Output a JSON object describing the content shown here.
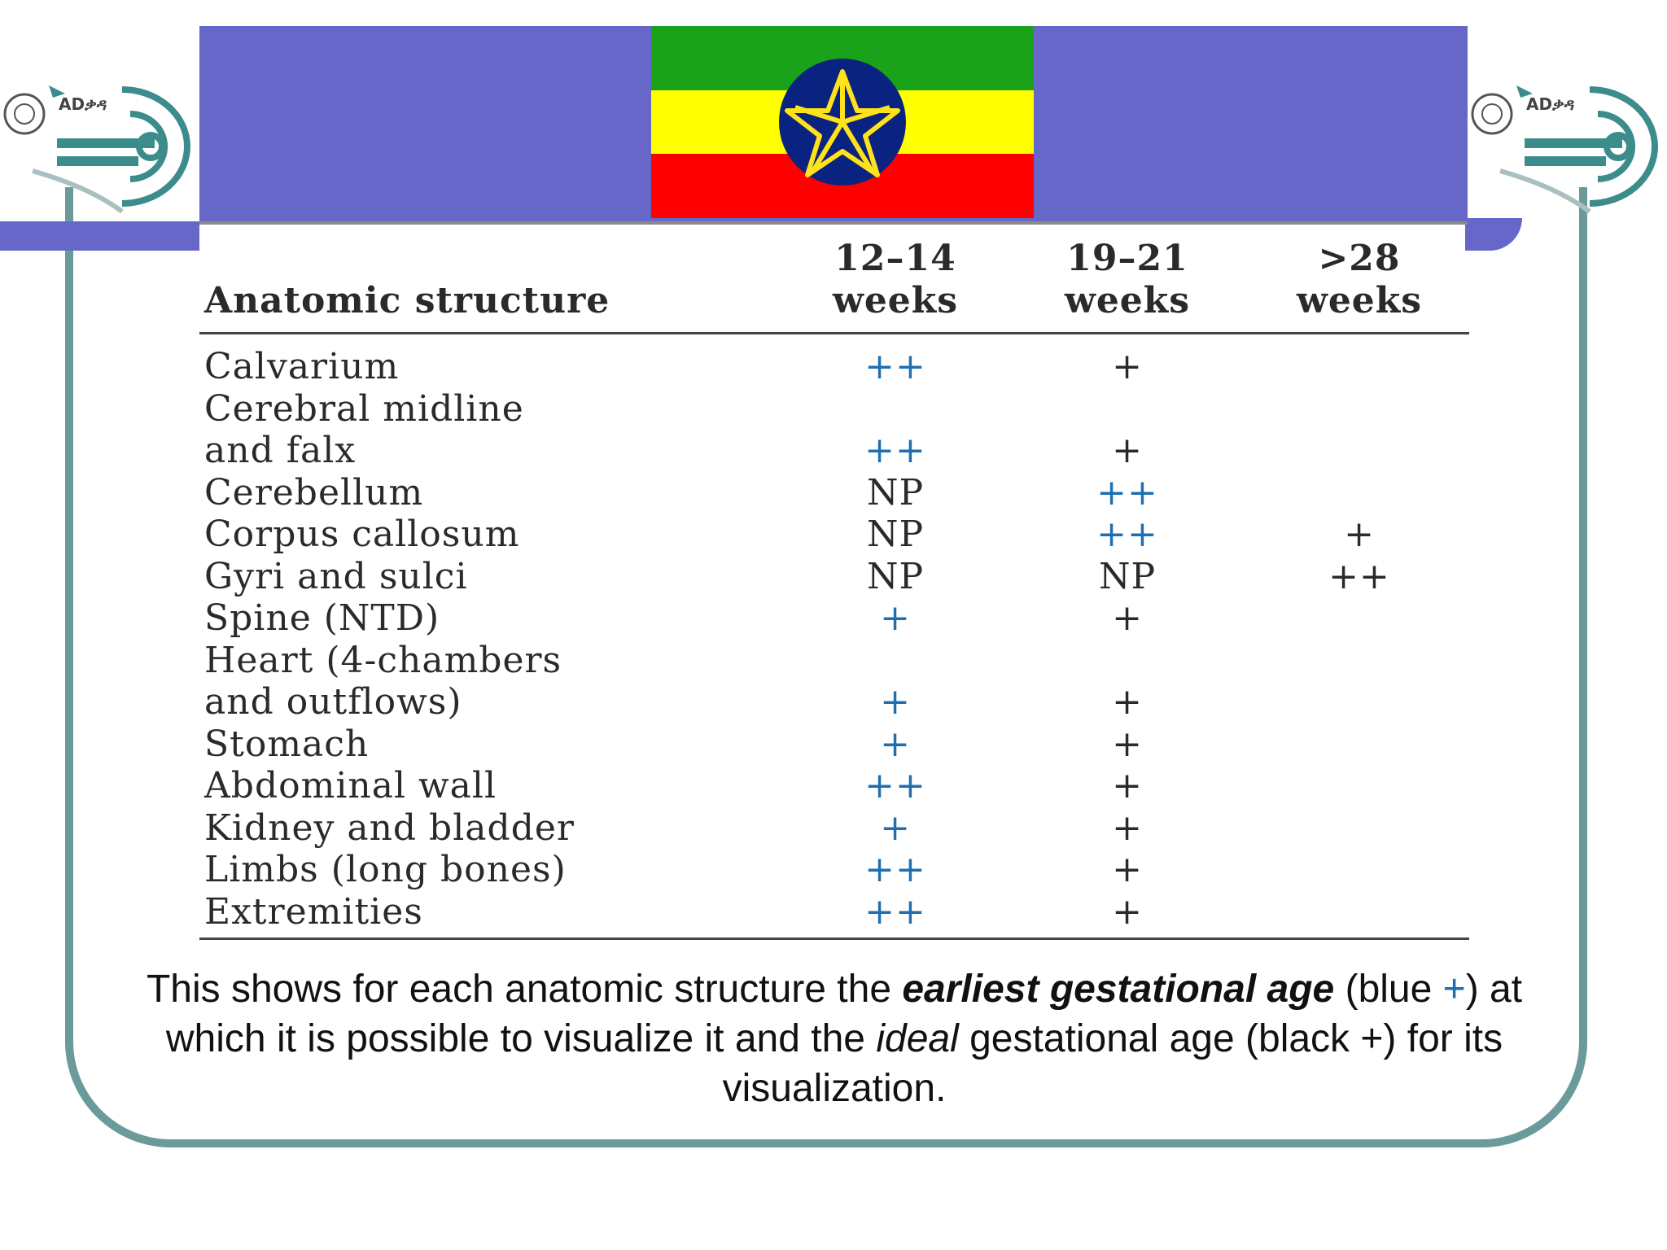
{
  "table": {
    "headers": {
      "structure": "Anatomic structure",
      "col1_line1": "12–14",
      "col1_line2": "weeks",
      "col2_line1": "19–21",
      "col2_line2": "weeks",
      "col3_line1": ">28",
      "col3_line2": "weeks"
    },
    "rows": [
      {
        "structure": "Calvarium",
        "c1": "++",
        "c1_color": "blue",
        "c2": "+",
        "c2_color": "black",
        "c3": "",
        "c3_color": "black"
      },
      {
        "structure": "Cerebral midline",
        "c1": "",
        "c1_color": "black",
        "c2": "",
        "c2_color": "black",
        "c3": "",
        "c3_color": "black"
      },
      {
        "structure": "and falx",
        "c1": "++",
        "c1_color": "blue",
        "c2": "+",
        "c2_color": "black",
        "c3": "",
        "c3_color": "black"
      },
      {
        "structure": "Cerebellum",
        "c1": "NP",
        "c1_color": "black",
        "c2": "++",
        "c2_color": "blue",
        "c3": "",
        "c3_color": "black"
      },
      {
        "structure": "Corpus callosum",
        "c1": "NP",
        "c1_color": "black",
        "c2": "++",
        "c2_color": "blue",
        "c3": "+",
        "c3_color": "black"
      },
      {
        "structure": "Gyri and sulci",
        "c1": "NP",
        "c1_color": "black",
        "c2": "NP",
        "c2_color": "black",
        "c3": "++",
        "c3_color": "black"
      },
      {
        "structure": "Spine (NTD)",
        "c1": "+",
        "c1_color": "blue",
        "c2": "+",
        "c2_color": "black",
        "c3": "",
        "c3_color": "black"
      },
      {
        "structure": "Heart (4-chambers",
        "c1": "",
        "c1_color": "black",
        "c2": "",
        "c2_color": "black",
        "c3": "",
        "c3_color": "black"
      },
      {
        "structure": "and outflows)",
        "c1": "+",
        "c1_color": "blue",
        "c2": "+",
        "c2_color": "black",
        "c3": "",
        "c3_color": "black"
      },
      {
        "structure": "Stomach",
        "c1": "+",
        "c1_color": "blue",
        "c2": "+",
        "c2_color": "black",
        "c3": "",
        "c3_color": "black"
      },
      {
        "structure": "Abdominal wall",
        "c1": "++",
        "c1_color": "blue",
        "c2": "+",
        "c2_color": "black",
        "c3": "",
        "c3_color": "black"
      },
      {
        "structure": "Kidney and bladder",
        "c1": "+",
        "c1_color": "blue",
        "c2": "+",
        "c2_color": "black",
        "c3": "",
        "c3_color": "black"
      },
      {
        "structure": "Limbs (long bones)",
        "c1": "++",
        "c1_color": "blue",
        "c2": "+",
        "c2_color": "black",
        "c3": "",
        "c3_color": "black"
      },
      {
        "structure": "Extremities",
        "c1": "++",
        "c1_color": "blue",
        "c2": "+",
        "c2_color": "black",
        "c3": "",
        "c3_color": "black"
      }
    ]
  },
  "caption": {
    "part1": "This shows for each anatomic structure the ",
    "bold_italic": "earliest gestational age",
    "part2": " (blue ",
    "plus_blue": "+",
    "part3": ") at which it is possible to visualize it and the ",
    "italic": "ideal",
    "part4": " gestational age (black +) for its visualization."
  },
  "logo_text": "ADቃዳ",
  "colors": {
    "banner": "#6767c9",
    "frame": "#6b9a9a",
    "blue_plus": "#1f6fb0",
    "flag_green": "#1aa31a",
    "flag_yellow": "#ffff00",
    "flag_red": "#ff0000",
    "emblem_blue": "#0b2380",
    "emblem_star": "#ffe21a"
  }
}
